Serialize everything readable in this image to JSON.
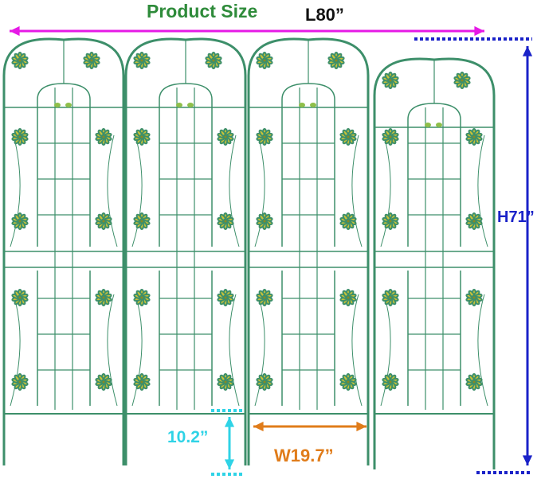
{
  "title": "Product Size",
  "dimensions": {
    "length": "L80”",
    "height": "H71”",
    "width": "W19.7”",
    "leg": "10.2”"
  },
  "panel_count": 4,
  "colors": {
    "title": "#2e8b3a",
    "length_arrow": "#e619e6",
    "height_arrow": "#1a22c8",
    "width_arrow": "#e07c1a",
    "leg_arrow": "#2fd3e6",
    "frame": "#3d8f6a",
    "flower": "#c8c23a"
  }
}
